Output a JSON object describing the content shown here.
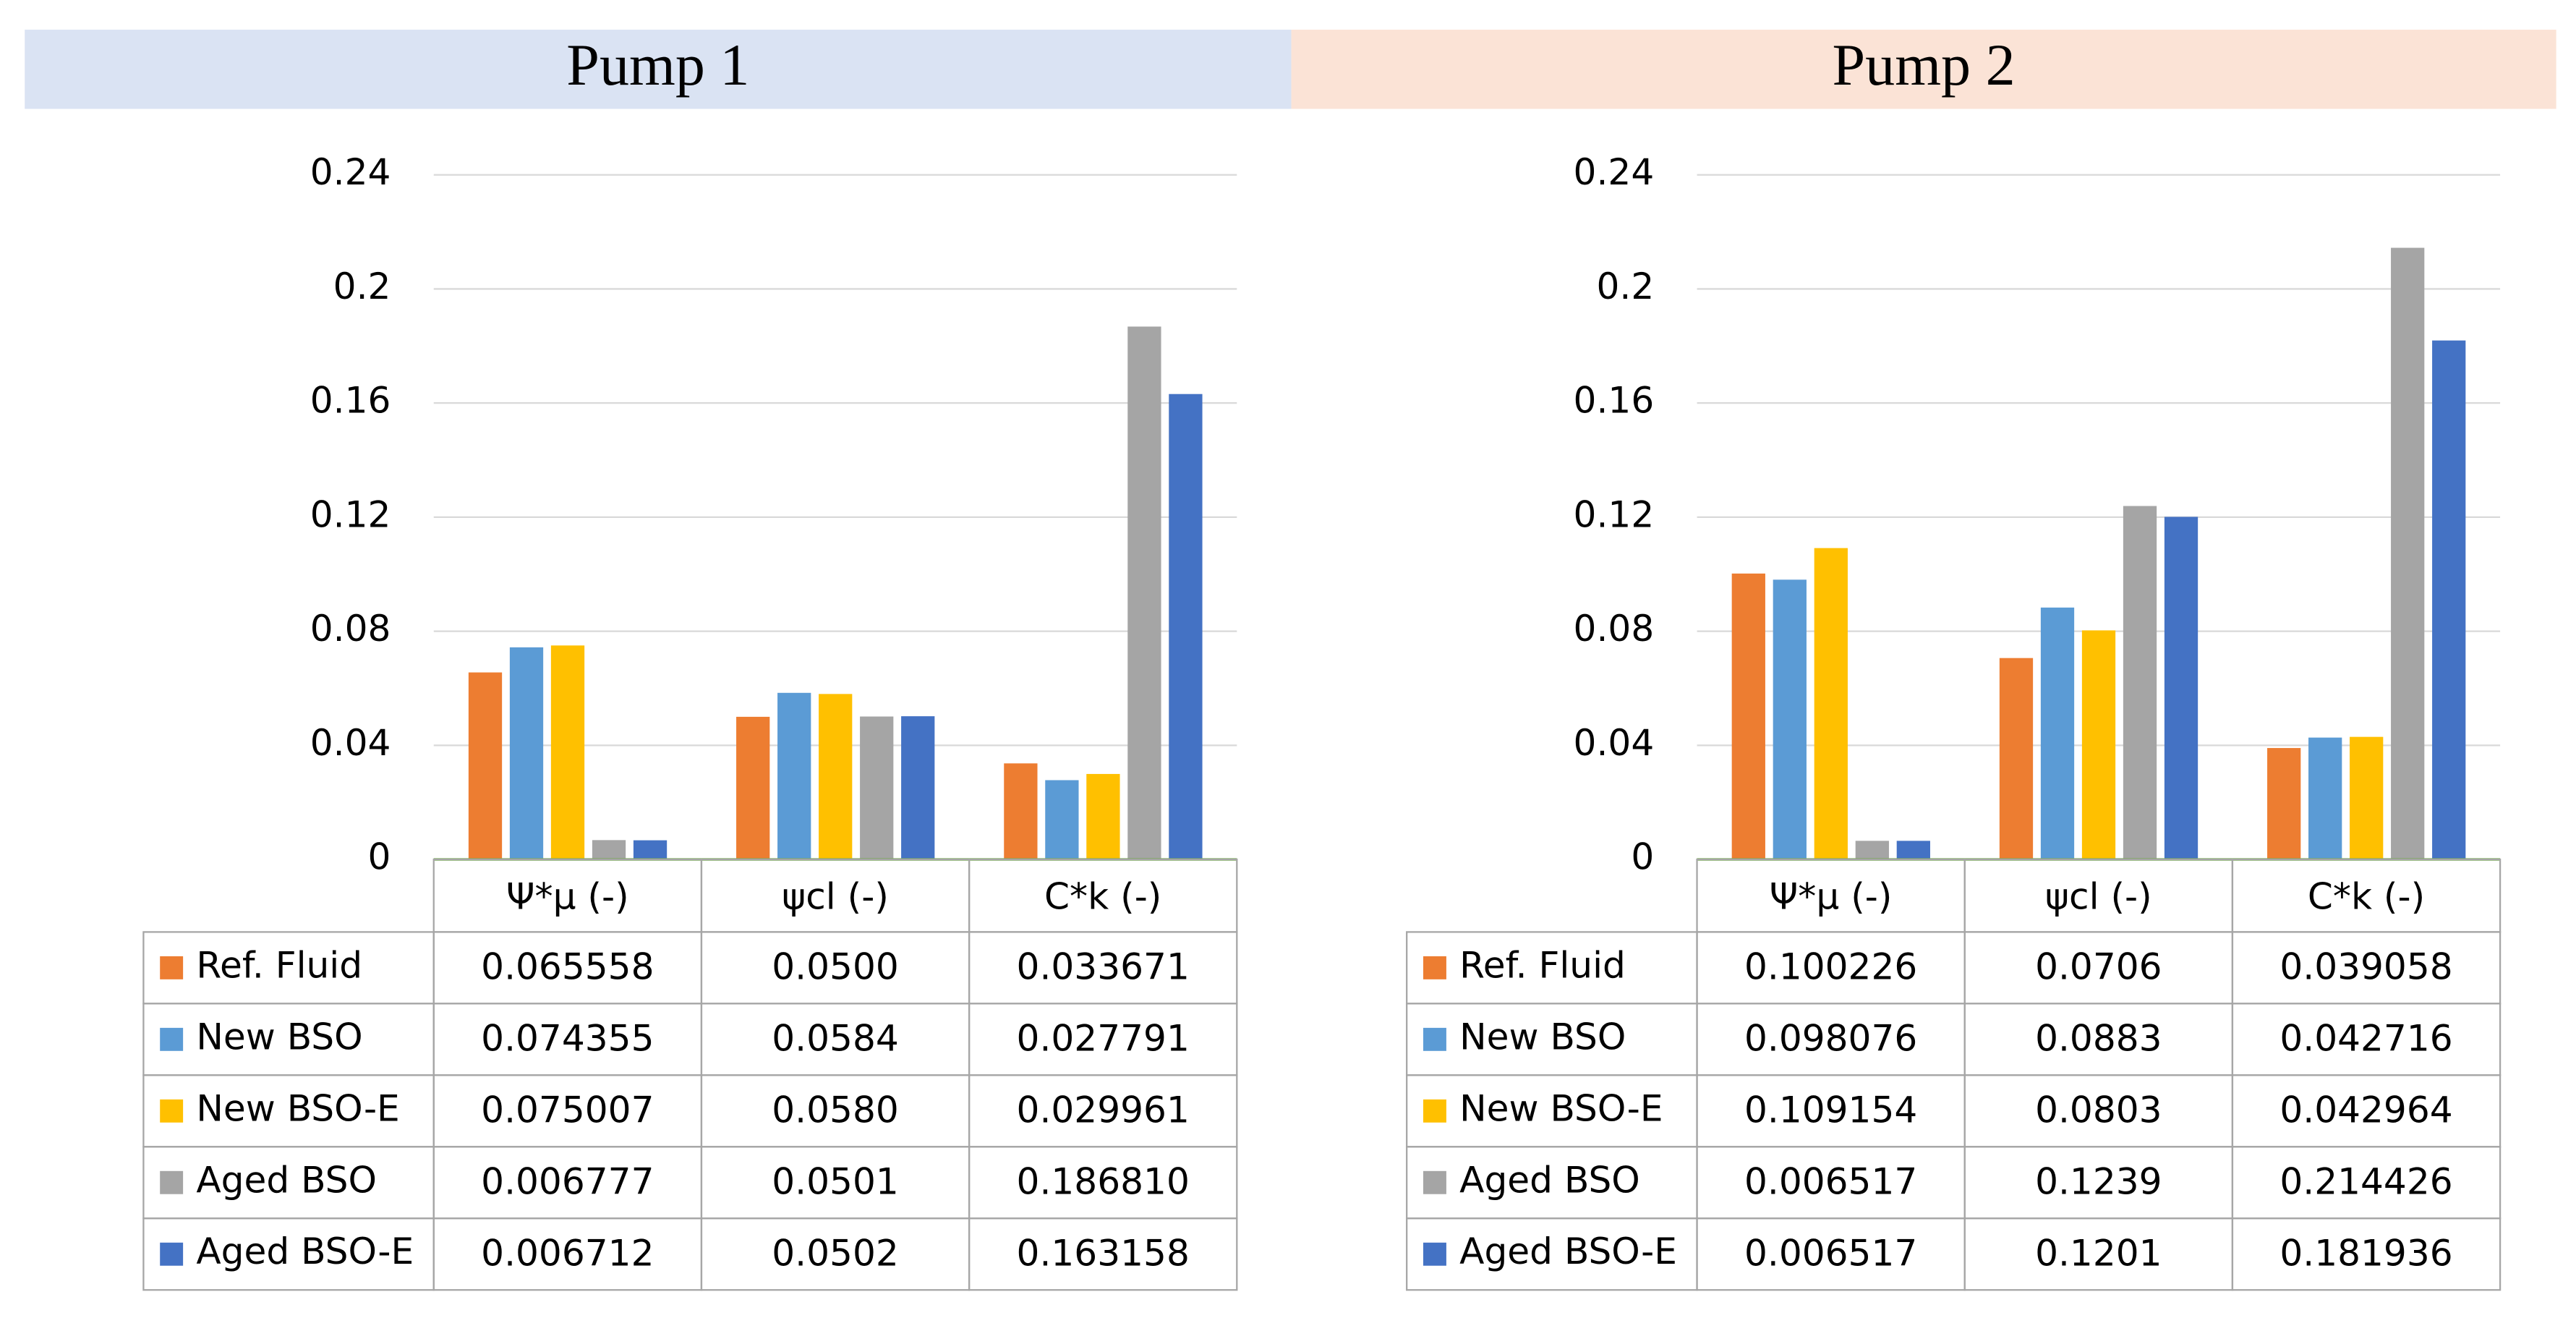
{
  "chart_data": [
    {
      "type": "bar",
      "title": "Pump 1",
      "header_color": "#dae3f3",
      "categories": [
        "Ψ*μ (-)",
        "ψcl (-)",
        "C*k (-)"
      ],
      "ylim": [
        0,
        0.24
      ],
      "yticks": [
        0,
        0.04,
        0.08,
        0.12,
        0.16,
        0.2,
        0.24
      ],
      "grid": true,
      "series": [
        {
          "name": "Ref. Fluid",
          "color": "#ed7d31",
          "values": [
            0.065558,
            0.05,
            0.033671
          ],
          "value_labels": [
            "0.065558",
            "0.0500",
            "0.033671"
          ]
        },
        {
          "name": "New BSO",
          "color": "#5b9bd5",
          "values": [
            0.074355,
            0.0584,
            0.027791
          ],
          "value_labels": [
            "0.074355",
            "0.0584",
            "0.027791"
          ]
        },
        {
          "name": "New BSO-E",
          "color": "#ffc000",
          "values": [
            0.075007,
            0.058,
            0.029961
          ],
          "value_labels": [
            "0.075007",
            "0.0580",
            "0.029961"
          ]
        },
        {
          "name": "Aged BSO",
          "color": "#a5a5a5",
          "values": [
            0.006777,
            0.0501,
            0.18681
          ],
          "value_labels": [
            "0.006777",
            "0.0501",
            "0.186810"
          ]
        },
        {
          "name": "Aged BSO-E",
          "color": "#4472c4",
          "values": [
            0.006712,
            0.0502,
            0.163158
          ],
          "value_labels": [
            "0.006712",
            "0.0502",
            "0.163158"
          ]
        }
      ]
    },
    {
      "type": "bar",
      "title": "Pump 2",
      "header_color": "#fbe3d6",
      "categories": [
        "Ψ*μ (-)",
        "ψcl (-)",
        "C*k (-)"
      ],
      "ylim": [
        0,
        0.24
      ],
      "yticks": [
        0,
        0.04,
        0.08,
        0.12,
        0.16,
        0.2,
        0.24
      ],
      "grid": true,
      "series": [
        {
          "name": "Ref. Fluid",
          "color": "#ed7d31",
          "values": [
            0.100226,
            0.0706,
            0.039058
          ],
          "value_labels": [
            "0.100226",
            "0.0706",
            "0.039058"
          ]
        },
        {
          "name": "New BSO",
          "color": "#5b9bd5",
          "values": [
            0.098076,
            0.0883,
            0.042716
          ],
          "value_labels": [
            "0.098076",
            "0.0883",
            "0.042716"
          ]
        },
        {
          "name": "New BSO-E",
          "color": "#ffc000",
          "values": [
            0.109154,
            0.0803,
            0.042964
          ],
          "value_labels": [
            "0.109154",
            "0.0803",
            "0.042964"
          ]
        },
        {
          "name": "Aged BSO",
          "color": "#a5a5a5",
          "values": [
            0.006517,
            0.1239,
            0.214426
          ],
          "value_labels": [
            "0.006517",
            "0.1239",
            "0.214426"
          ]
        },
        {
          "name": "Aged BSO-E",
          "color": "#4472c4",
          "values": [
            0.006517,
            0.1201,
            0.181936
          ],
          "value_labels": [
            "0.006517",
            "0.1201",
            "0.181936"
          ]
        }
      ]
    }
  ]
}
